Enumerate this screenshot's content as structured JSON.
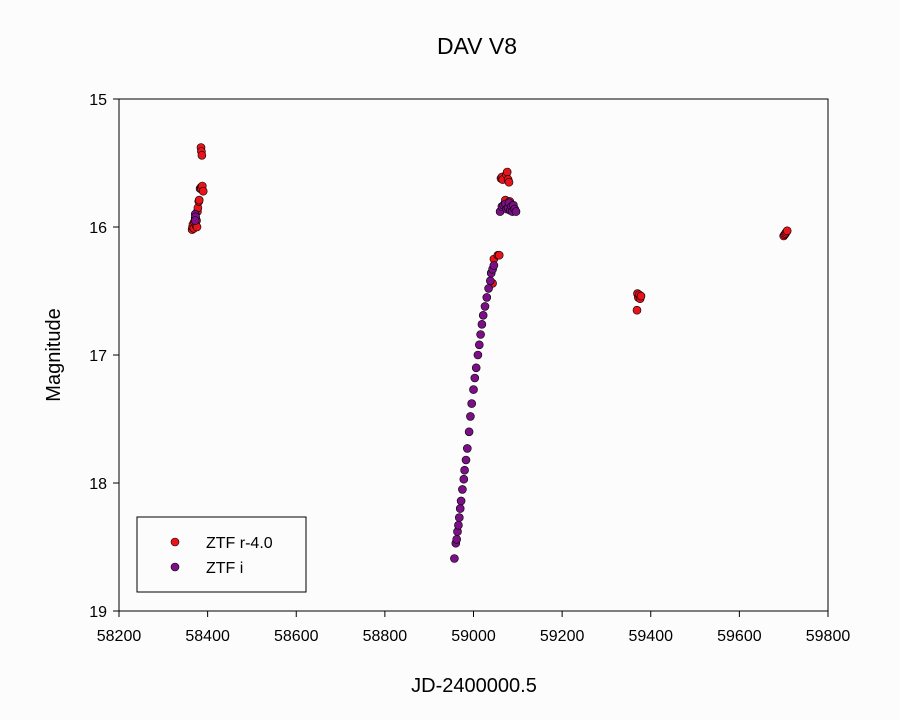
{
  "chart_data": {
    "type": "scatter",
    "title": "DAV V8",
    "xlabel": "JD-2400000.5",
    "ylabel": "Magnitude",
    "xlim": [
      58200,
      59800
    ],
    "ylim": [
      15,
      19
    ],
    "y_inverted": true,
    "xticks": [
      58200,
      58400,
      58600,
      58800,
      59000,
      59200,
      59400,
      59600,
      59800
    ],
    "yticks": [
      15,
      16,
      17,
      18,
      19
    ],
    "grid": false,
    "legend_position": "bottom-left",
    "series": [
      {
        "name": "ZTF r-4.0",
        "color": "#e8141c",
        "points": [
          [
            58365,
            16.02
          ],
          [
            58366,
            16.0
          ],
          [
            58367,
            15.98
          ],
          [
            58369,
            16.01
          ],
          [
            58370,
            15.96
          ],
          [
            58372,
            15.93
          ],
          [
            58374,
            15.99
          ],
          [
            58375,
            15.95
          ],
          [
            58376,
            16.0
          ],
          [
            58377,
            15.88
          ],
          [
            58378,
            15.85
          ],
          [
            58380,
            15.8
          ],
          [
            58381,
            15.79
          ],
          [
            58383,
            15.7
          ],
          [
            58385,
            15.69
          ],
          [
            58386,
            15.7
          ],
          [
            58388,
            15.68
          ],
          [
            58390,
            15.72
          ],
          [
            58385,
            15.38
          ],
          [
            58386,
            15.41
          ],
          [
            58387,
            15.44
          ],
          [
            59043,
            16.44
          ],
          [
            59046,
            16.25
          ],
          [
            59055,
            16.22
          ],
          [
            59058,
            16.22
          ],
          [
            59062,
            15.62
          ],
          [
            59064,
            15.61
          ],
          [
            59066,
            15.63
          ],
          [
            59070,
            15.82
          ],
          [
            59072,
            15.79
          ],
          [
            59074,
            15.59
          ],
          [
            59076,
            15.57
          ],
          [
            59078,
            15.63
          ],
          [
            59080,
            15.65
          ],
          [
            59082,
            15.8
          ],
          [
            59086,
            15.83
          ],
          [
            59370,
            16.52
          ],
          [
            59372,
            16.55
          ],
          [
            59374,
            16.53
          ],
          [
            59376,
            16.56
          ],
          [
            59378,
            16.54
          ],
          [
            59369,
            16.65
          ],
          [
            59700,
            16.07
          ],
          [
            59702,
            16.06
          ],
          [
            59704,
            16.05
          ],
          [
            59706,
            16.04
          ],
          [
            59708,
            16.03
          ]
        ]
      },
      {
        "name": "ZTF i",
        "color": "#7b0f85",
        "points": [
          [
            58372,
            15.9
          ],
          [
            58373,
            15.92
          ],
          [
            58372,
            15.95
          ],
          [
            58957,
            18.59
          ],
          [
            58960,
            18.47
          ],
          [
            58962,
            18.44
          ],
          [
            58964,
            18.38
          ],
          [
            58966,
            18.33
          ],
          [
            58968,
            18.27
          ],
          [
            58970,
            18.2
          ],
          [
            58972,
            18.14
          ],
          [
            58975,
            18.05
          ],
          [
            58978,
            17.97
          ],
          [
            58980,
            17.9
          ],
          [
            58983,
            17.82
          ],
          [
            58986,
            17.73
          ],
          [
            58990,
            17.6
          ],
          [
            58993,
            17.48
          ],
          [
            58996,
            17.38
          ],
          [
            59000,
            17.27
          ],
          [
            59003,
            17.18
          ],
          [
            59006,
            17.1
          ],
          [
            59010,
            17.0
          ],
          [
            59013,
            16.92
          ],
          [
            59016,
            16.84
          ],
          [
            59019,
            16.76
          ],
          [
            59022,
            16.69
          ],
          [
            59026,
            16.62
          ],
          [
            59030,
            16.55
          ],
          [
            59034,
            16.48
          ],
          [
            59038,
            16.42
          ],
          [
            59040,
            16.36
          ],
          [
            59043,
            16.33
          ],
          [
            59046,
            16.3
          ],
          [
            59060,
            15.88
          ],
          [
            59064,
            15.84
          ],
          [
            59068,
            15.83
          ],
          [
            59072,
            15.82
          ],
          [
            59075,
            15.86
          ],
          [
            59078,
            15.85
          ],
          [
            59080,
            15.81
          ],
          [
            59083,
            15.87
          ],
          [
            59086,
            15.84
          ],
          [
            59088,
            15.88
          ],
          [
            59090,
            15.83
          ],
          [
            59093,
            15.86
          ],
          [
            59096,
            15.88
          ]
        ]
      }
    ]
  }
}
